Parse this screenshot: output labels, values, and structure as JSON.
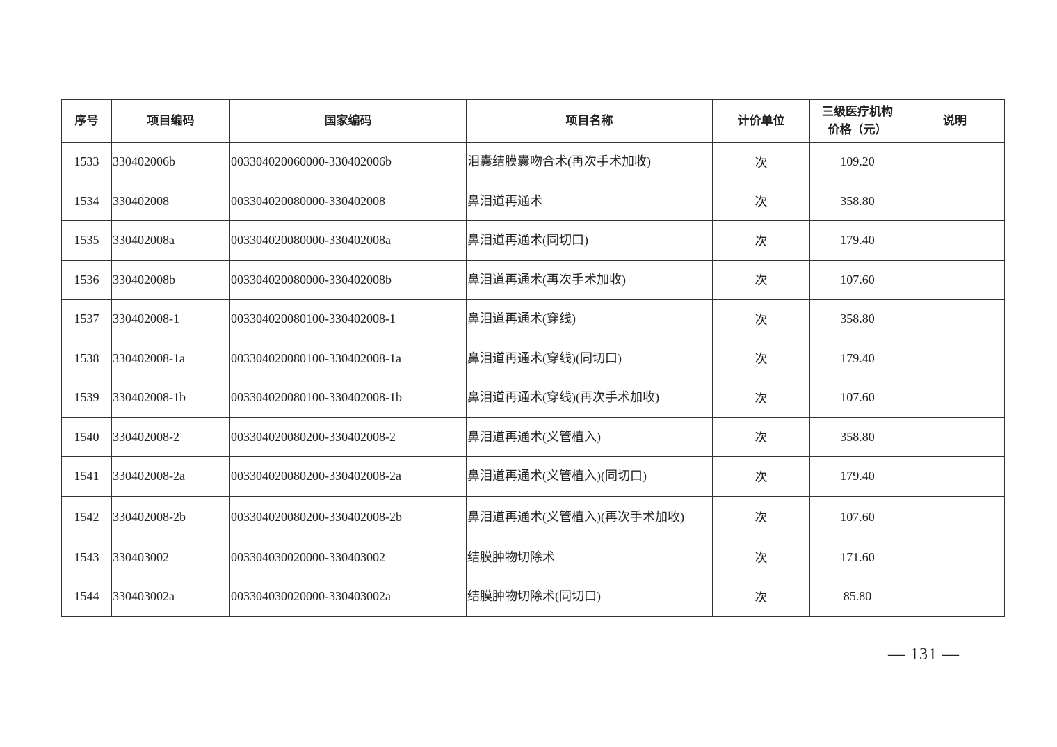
{
  "table": {
    "headers": [
      "序号",
      "项目编码",
      "国家编码",
      "项目名称",
      "计价单位",
      "三级医疗机构价格（元）",
      "说明"
    ],
    "header_price_line1": "三级医疗机构",
    "header_price_line2": "价格（元）",
    "rows": [
      {
        "no": "1533",
        "code": "330402006b",
        "national": "003304020060000-330402006b",
        "name": "泪囊结膜囊吻合术(再次手术加收)",
        "unit": "次",
        "price": "109.20",
        "note": ""
      },
      {
        "no": "1534",
        "code": "330402008",
        "national": "003304020080000-330402008",
        "name": "鼻泪道再通术",
        "unit": "次",
        "price": "358.80",
        "note": ""
      },
      {
        "no": "1535",
        "code": "330402008a",
        "national": "003304020080000-330402008a",
        "name": "鼻泪道再通术(同切口)",
        "unit": "次",
        "price": "179.40",
        "note": ""
      },
      {
        "no": "1536",
        "code": "330402008b",
        "national": "003304020080000-330402008b",
        "name": "鼻泪道再通术(再次手术加收)",
        "unit": "次",
        "price": "107.60",
        "note": ""
      },
      {
        "no": "1537",
        "code": "330402008-1",
        "national": "003304020080100-330402008-1",
        "name": "鼻泪道再通术(穿线)",
        "unit": "次",
        "price": "358.80",
        "note": ""
      },
      {
        "no": "1538",
        "code": "330402008-1a",
        "national": "003304020080100-330402008-1a",
        "name": "鼻泪道再通术(穿线)(同切口)",
        "unit": "次",
        "price": "179.40",
        "note": ""
      },
      {
        "no": "1539",
        "code": "330402008-1b",
        "national": "003304020080100-330402008-1b",
        "name": "鼻泪道再通术(穿线)(再次手术加收)",
        "unit": "次",
        "price": "107.60",
        "note": ""
      },
      {
        "no": "1540",
        "code": "330402008-2",
        "national": "003304020080200-330402008-2",
        "name": "鼻泪道再通术(义管植入)",
        "unit": "次",
        "price": "358.80",
        "note": ""
      },
      {
        "no": "1541",
        "code": "330402008-2a",
        "national": "003304020080200-330402008-2a",
        "name": "鼻泪道再通术(义管植入)(同切口)",
        "unit": "次",
        "price": "179.40",
        "note": ""
      },
      {
        "no": "1542",
        "code": "330402008-2b",
        "national": "003304020080200-330402008-2b",
        "name": "鼻泪道再通术(义管植入)(再次手术加收)",
        "unit": "次",
        "price": "107.60",
        "note": ""
      },
      {
        "no": "1543",
        "code": "330403002",
        "national": "003304030020000-330403002",
        "name": "结膜肿物切除术",
        "unit": "次",
        "price": "171.60",
        "note": ""
      },
      {
        "no": "1544",
        "code": "330403002a",
        "national": "003304030020000-330403002a",
        "name": "结膜肿物切除术(同切口)",
        "unit": "次",
        "price": "85.80",
        "note": ""
      }
    ]
  },
  "page_number": "— 131 —"
}
